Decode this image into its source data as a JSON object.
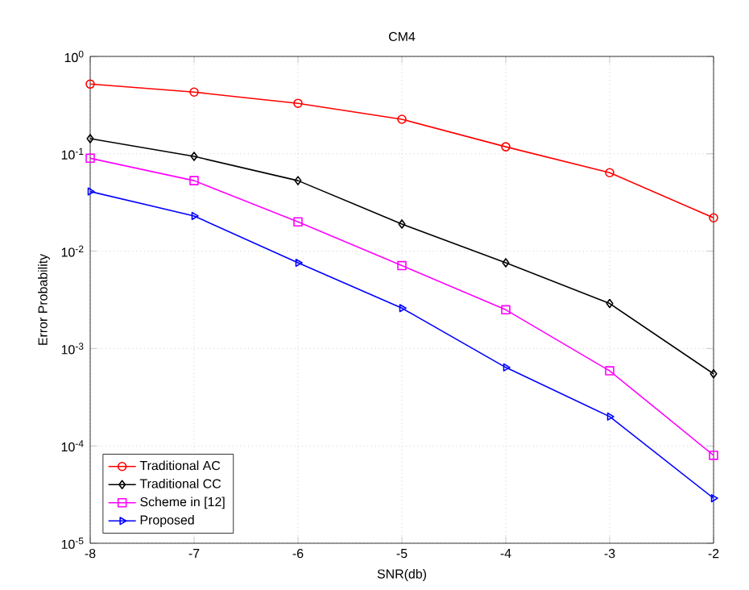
{
  "chart_data": {
    "type": "line",
    "title": "CM4",
    "xlabel": "SNR(db)",
    "ylabel": "Error Probability",
    "x": [
      -8,
      -7,
      -6,
      -5,
      -4,
      -3,
      -2
    ],
    "series": [
      {
        "name": "Traditional AC",
        "color": "#ff0000",
        "marker": "circle",
        "values": [
          0.52,
          0.43,
          0.33,
          0.226,
          0.118,
          0.064,
          0.022
        ]
      },
      {
        "name": "Traditional CC",
        "color": "#000000",
        "marker": "diamond",
        "values": [
          0.143,
          0.094,
          0.053,
          0.019,
          0.0076,
          0.0029,
          0.00055
        ]
      },
      {
        "name": "Scheme in [12]",
        "color": "#ff00ff",
        "marker": "square",
        "values": [
          0.09,
          0.053,
          0.02,
          0.0071,
          0.0025,
          0.00059,
          8e-05
        ]
      },
      {
        "name": "Proposed",
        "color": "#0000ff",
        "marker": "triangle",
        "values": [
          0.041,
          0.023,
          0.0076,
          0.0026,
          0.00064,
          0.0002,
          2.9e-05
        ]
      }
    ],
    "log": "y",
    "grid": true,
    "legend": "bottom left",
    "line_style": "solid",
    "xlim": [
      -8,
      -2
    ],
    "xticks": [
      -8,
      -7,
      -6,
      -5,
      -4,
      -3,
      -2
    ],
    "ylim": [
      1e-05,
      1
    ],
    "yticks": [
      {
        "value": 1e-05,
        "label": "10$^{-5}$"
      },
      {
        "value": 0.0001,
        "label": "10$^{-4}$"
      },
      {
        "value": 0.001,
        "label": "10$^{-3}$"
      },
      {
        "value": 0.01,
        "label": "10$^{-2}$"
      },
      {
        "value": 0.1,
        "label": "10$^{-1}$"
      },
      {
        "value": 1,
        "label": "10$^{0}$"
      }
    ]
  }
}
